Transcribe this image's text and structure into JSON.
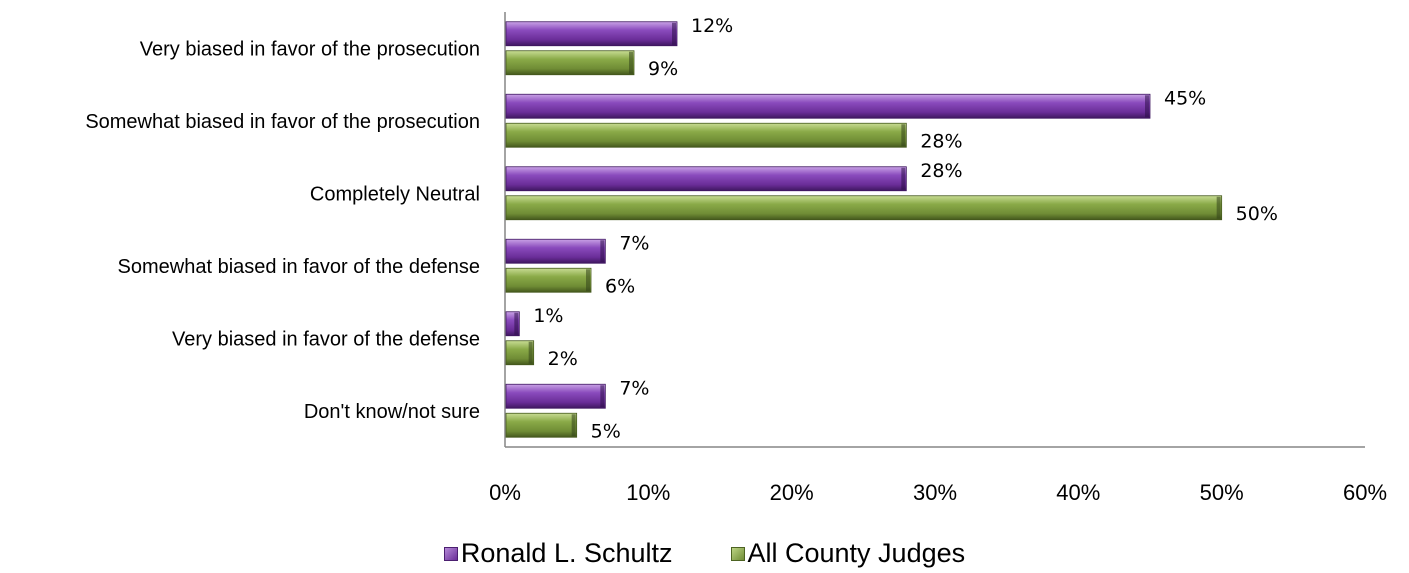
{
  "chart_data": {
    "type": "bar",
    "orientation": "horizontal",
    "categories": [
      "Very biased in favor of the prosecution",
      "Somewhat biased in favor of the prosecution",
      "Completely Neutral",
      "Somewhat biased in favor of the defense",
      "Very biased in favor of the defense",
      "Don't know/not sure"
    ],
    "series": [
      {
        "name": "Ronald L. Schultz",
        "color": "#7030a0",
        "values": [
          12,
          45,
          28,
          7,
          1,
          7
        ],
        "labels": [
          "12%",
          "45%",
          "28%",
          "7%",
          "1%",
          "7%"
        ]
      },
      {
        "name": "All County Judges",
        "color": "#77933c",
        "values": [
          9,
          28,
          50,
          6,
          2,
          5
        ],
        "labels": [
          "9%",
          "28%",
          "50%",
          "6%",
          "2%",
          "5%"
        ]
      }
    ],
    "xlim": [
      0,
      60
    ],
    "x_ticks": [
      "0%",
      "10%",
      "20%",
      "30%",
      "40%",
      "50%",
      "60%"
    ],
    "title": "",
    "xlabel": "",
    "ylabel": "",
    "grid": false,
    "legend_position": "bottom"
  }
}
